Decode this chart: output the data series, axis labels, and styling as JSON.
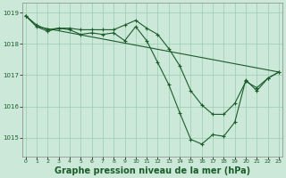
{
  "bg_color": "#cce8d8",
  "grid_color": "#99ccb0",
  "line_color": "#1a5c2a",
  "xlabel": "Graphe pression niveau de la mer (hPa)",
  "xlabel_fontsize": 7.0,
  "yticks": [
    1015,
    1016,
    1017,
    1018,
    1019
  ],
  "xticks": [
    0,
    1,
    2,
    3,
    4,
    5,
    6,
    7,
    8,
    9,
    10,
    11,
    12,
    13,
    14,
    15,
    16,
    17,
    18,
    19,
    20,
    21,
    22,
    23
  ],
  "xlim": [
    -0.3,
    23.3
  ],
  "ylim": [
    1014.4,
    1019.3
  ],
  "series1_x": [
    0,
    1,
    2,
    3,
    4,
    5,
    6,
    7,
    8,
    9,
    10,
    11,
    12,
    13,
    14,
    15,
    16,
    17,
    18,
    19,
    20,
    21,
    22,
    23
  ],
  "series1_y": [
    1018.9,
    1018.6,
    1018.45,
    1018.5,
    1018.5,
    1018.45,
    1018.45,
    1018.45,
    1018.45,
    1018.6,
    1018.75,
    1018.5,
    1018.3,
    1017.85,
    1017.3,
    1016.5,
    1016.05,
    1015.75,
    1015.75,
    1016.1,
    1016.8,
    1016.6,
    1016.9,
    1017.1
  ],
  "series2_x": [
    0,
    1,
    2,
    3,
    4,
    5,
    6,
    7,
    8,
    9,
    10,
    11,
    12,
    13,
    14,
    15,
    16,
    17,
    18,
    19,
    20,
    21,
    22,
    23
  ],
  "series2_y": [
    1018.9,
    1018.55,
    1018.4,
    1018.5,
    1018.45,
    1018.3,
    1018.35,
    1018.3,
    1018.35,
    1018.1,
    1018.55,
    1018.1,
    1017.4,
    1016.7,
    1015.8,
    1014.95,
    1014.8,
    1015.1,
    1015.05,
    1015.5,
    1016.85,
    1016.5,
    1016.9,
    1017.1
  ],
  "series3_x": [
    0,
    1,
    23
  ],
  "series3_y": [
    1018.9,
    1018.55,
    1017.1
  ]
}
